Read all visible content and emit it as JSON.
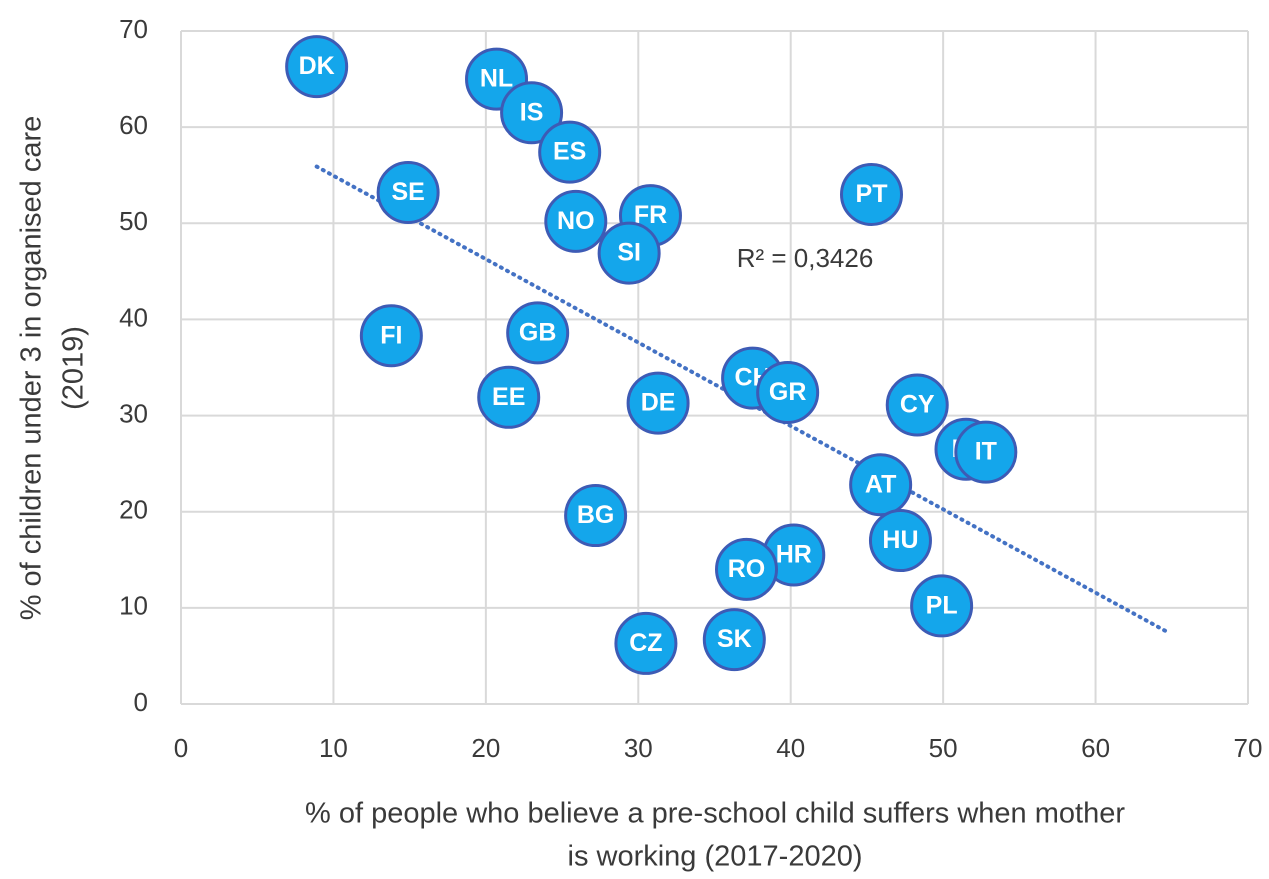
{
  "chart_data": {
    "type": "scatter",
    "labels": [
      "DK",
      "NL",
      "IS",
      "ES",
      "SE",
      "NO",
      "FR",
      "SI",
      "PT",
      "FI",
      "GB",
      "EE",
      "DE",
      "CH",
      "GR",
      "CY",
      "LT",
      "IT",
      "AT",
      "HU",
      "BG",
      "HR",
      "RO",
      "PL",
      "CZ",
      "SK"
    ],
    "x": [
      8.9,
      20.7,
      23.0,
      25.5,
      14.9,
      25.9,
      30.8,
      29.4,
      45.3,
      13.8,
      23.4,
      21.5,
      31.3,
      37.5,
      39.8,
      48.3,
      51.5,
      52.8,
      45.9,
      47.2,
      27.2,
      40.2,
      37.1,
      49.9,
      30.5,
      36.3
    ],
    "y": [
      66.3,
      65.0,
      61.5,
      57.4,
      53.2,
      50.2,
      50.8,
      46.9,
      53.0,
      38.3,
      38.6,
      31.9,
      31.3,
      33.9,
      32.4,
      31.1,
      26.5,
      26.2,
      22.8,
      17.0,
      19.6,
      15.5,
      14.0,
      10.2,
      6.3,
      6.7
    ],
    "color": "#14a6eb",
    "edgecolor": "#3d5bb5",
    "trendline": {
      "x": [
        8.9,
        64.7
      ],
      "y": [
        55.9,
        7.5
      ],
      "color": "#4472c4"
    },
    "annotation": "R² = 0,3426",
    "xlabel": [
      "% of people who believe a pre-school child suffers when mother",
      "is working (2017-2020)"
    ],
    "ylabel": [
      "% of children under 3 in organised care",
      "(2019)"
    ],
    "xlim": [
      0,
      70
    ],
    "ylim": [
      0,
      70
    ],
    "xticks": [
      0,
      10,
      20,
      30,
      40,
      50,
      60,
      70
    ],
    "yticks": [
      0,
      10,
      20,
      30,
      40,
      50,
      60,
      70
    ],
    "grid": true
  }
}
